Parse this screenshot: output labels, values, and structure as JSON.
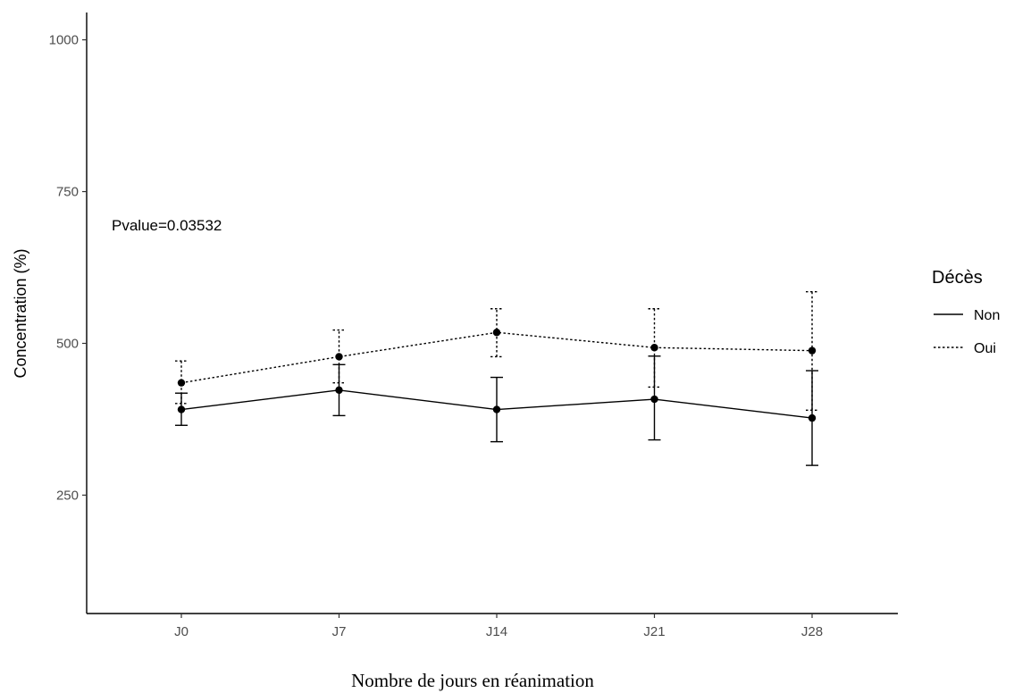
{
  "chart_data": {
    "type": "line",
    "categories": [
      "J0",
      "J7",
      "J14",
      "J21",
      "J28"
    ],
    "xlabel": "Nombre de jours en réanimation",
    "ylabel": "Concentration (%)",
    "yticks": [
      250,
      500,
      750,
      1000
    ],
    "ylim": [
      55,
      1045
    ],
    "grid": false,
    "legend": {
      "title": "Décès",
      "placement": "right"
    },
    "annotation": "Pvalue=0.03532",
    "series": [
      {
        "name": "Non",
        "linestyle": "solid",
        "values": [
          391,
          423,
          391,
          408,
          377
        ],
        "lower": [
          365,
          381,
          338,
          341,
          299
        ],
        "upper": [
          418,
          465,
          444,
          479,
          455
        ]
      },
      {
        "name": "Oui",
        "linestyle": "dotted",
        "values": [
          435,
          478,
          518,
          493,
          488
        ],
        "lower": [
          401,
          435,
          478,
          428,
          390
        ],
        "upper": [
          471,
          522,
          557,
          557,
          585
        ]
      }
    ]
  }
}
